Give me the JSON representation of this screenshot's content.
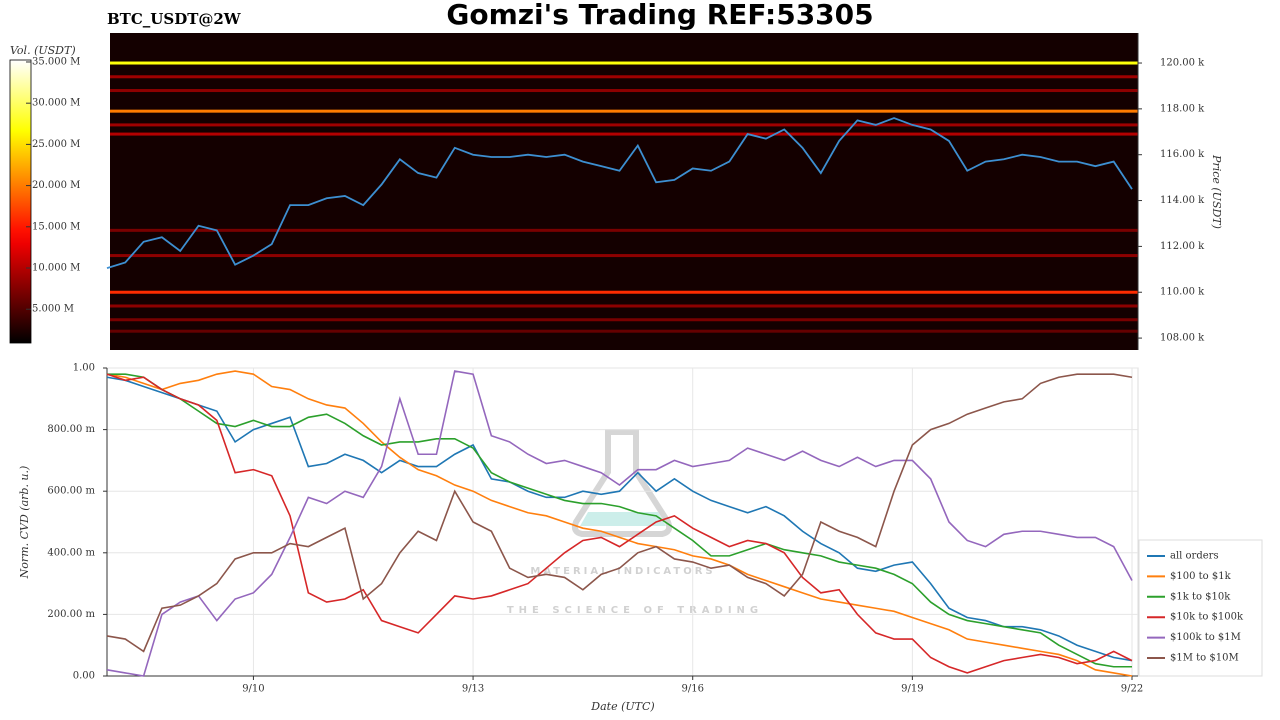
{
  "chart_data": [
    {
      "type": "heatmap",
      "title": "Gomzi's Trading REF:53305",
      "subtitle": "BTC_USDT@2W",
      "ylabel": "Price (USDT)",
      "ylim": [
        107480,
        121310
      ],
      "yticks": [
        {
          "value": 108000,
          "label": "108.00 k"
        },
        {
          "value": 110000,
          "label": "110.00 k"
        },
        {
          "value": 112000,
          "label": "112.00 k"
        },
        {
          "value": 114000,
          "label": "114.00 k"
        },
        {
          "value": 116000,
          "label": "116.00 k"
        },
        {
          "value": 118000,
          "label": "118.00 k"
        },
        {
          "value": 120000,
          "label": "120.00 k"
        }
      ],
      "colorbar": {
        "label": "Vol. (USDT)",
        "colormap": "hot",
        "lim": [
          900000,
          35240000
        ],
        "ticks": [
          {
            "value": 5000000,
            "label": "5.000 M"
          },
          {
            "value": 10000000,
            "label": "10.000 M"
          },
          {
            "value": 15000000,
            "label": "15.000 M"
          },
          {
            "value": 20000000,
            "label": "20.000 M"
          },
          {
            "value": 25000000,
            "label": "25.000 M"
          },
          {
            "value": 30000000,
            "label": "30.000 M"
          },
          {
            "value": 35000000,
            "label": "35.000 M"
          }
        ]
      },
      "levels": [
        {
          "price": 120000,
          "volume": 27000000
        },
        {
          "price": 119400,
          "volume": 9000000
        },
        {
          "price": 118800,
          "volume": 8000000
        },
        {
          "price": 117900,
          "volume": 20000000
        },
        {
          "price": 117300,
          "volume": 9000000
        },
        {
          "price": 116900,
          "volume": 10000000
        },
        {
          "price": 112700,
          "volume": 7000000
        },
        {
          "price": 111600,
          "volume": 8000000
        },
        {
          "price": 110000,
          "volume": 16000000
        },
        {
          "price": 109400,
          "volume": 8000000
        },
        {
          "price": 108800,
          "volume": 7000000
        },
        {
          "price": 108300,
          "volume": 6000000
        }
      ],
      "price": {
        "color": "#3d8fd1",
        "values": [
          111050,
          111300,
          112200,
          112400,
          111800,
          112900,
          112700,
          111200,
          111600,
          112100,
          113800,
          113800,
          114100,
          114200,
          113800,
          114700,
          115800,
          115200,
          115000,
          116300,
          116000,
          115900,
          115900,
          116000,
          115900,
          116000,
          115700,
          115500,
          115300,
          116400,
          114800,
          114900,
          115400,
          115300,
          115700,
          116900,
          116700,
          117100,
          116300,
          115200,
          116600,
          117500,
          117300,
          117600,
          117300,
          117100,
          116600,
          115300,
          115700,
          115800,
          116000,
          115900,
          115700,
          115700,
          115500,
          115700,
          114500
        ]
      }
    },
    {
      "type": "line",
      "xlabel": "Date (UTC)",
      "ylabel": "Norm. CVD (arb. u.)",
      "grid": true,
      "legend": "right",
      "watermark": [
        "MATERIAL INDICATORS",
        "THE SCIENCE OF TRADING"
      ],
      "categories": [
        null,
        null,
        null,
        null,
        null,
        null,
        null,
        null,
        "9/10",
        null,
        null,
        null,
        null,
        null,
        null,
        null,
        null,
        null,
        null,
        null,
        "9/13",
        null,
        null,
        null,
        null,
        null,
        null,
        null,
        null,
        null,
        null,
        null,
        "9/16",
        null,
        null,
        null,
        null,
        null,
        null,
        null,
        null,
        null,
        null,
        null,
        "9/19",
        null,
        null,
        null,
        null,
        null,
        null,
        null,
        null,
        null,
        null,
        null,
        "9/22"
      ],
      "ylim": [
        0,
        1
      ],
      "yticks": [
        {
          "value": 0,
          "label": "0.00"
        },
        {
          "value": 0.2,
          "label": "200.00 m"
        },
        {
          "value": 0.4,
          "label": "400.00 m"
        },
        {
          "value": 0.6,
          "label": "600.00 m"
        },
        {
          "value": 0.8,
          "label": "800.00 m"
        },
        {
          "value": 1,
          "label": "1.00"
        }
      ],
      "series": [
        {
          "name": "all orders",
          "color": "#1f77b4",
          "values": [
            0.97,
            0.96,
            0.94,
            0.92,
            0.9,
            0.88,
            0.86,
            0.76,
            0.8,
            0.82,
            0.84,
            0.68,
            0.69,
            0.72,
            0.7,
            0.66,
            0.7,
            0.68,
            0.68,
            0.72,
            0.75,
            0.64,
            0.63,
            0.6,
            0.58,
            0.58,
            0.6,
            0.59,
            0.6,
            0.66,
            0.6,
            0.64,
            0.6,
            0.57,
            0.55,
            0.53,
            0.55,
            0.52,
            0.47,
            0.43,
            0.4,
            0.35,
            0.34,
            0.36,
            0.37,
            0.3,
            0.22,
            0.19,
            0.18,
            0.16,
            0.16,
            0.15,
            0.13,
            0.1,
            0.08,
            0.06,
            0.05
          ]
        },
        {
          "name": "$100 to $1k",
          "color": "#ff7f0e",
          "values": [
            0.98,
            0.97,
            0.95,
            0.93,
            0.95,
            0.96,
            0.98,
            0.99,
            0.98,
            0.94,
            0.93,
            0.9,
            0.88,
            0.87,
            0.82,
            0.76,
            0.71,
            0.67,
            0.65,
            0.62,
            0.6,
            0.57,
            0.55,
            0.53,
            0.52,
            0.5,
            0.48,
            0.47,
            0.45,
            0.43,
            0.42,
            0.41,
            0.39,
            0.38,
            0.36,
            0.33,
            0.31,
            0.29,
            0.27,
            0.25,
            0.24,
            0.23,
            0.22,
            0.21,
            0.19,
            0.17,
            0.15,
            0.12,
            0.11,
            0.1,
            0.09,
            0.08,
            0.07,
            0.05,
            0.02,
            0.01,
            0
          ]
        },
        {
          "name": "$1k to $10k",
          "color": "#2ca02c",
          "values": [
            0.98,
            0.98,
            0.97,
            0.93,
            0.9,
            0.86,
            0.82,
            0.81,
            0.83,
            0.81,
            0.81,
            0.84,
            0.85,
            0.82,
            0.78,
            0.75,
            0.76,
            0.76,
            0.77,
            0.77,
            0.74,
            0.66,
            0.63,
            0.61,
            0.59,
            0.57,
            0.56,
            0.56,
            0.55,
            0.53,
            0.52,
            0.48,
            0.44,
            0.39,
            0.39,
            0.41,
            0.43,
            0.41,
            0.4,
            0.39,
            0.37,
            0.36,
            0.35,
            0.33,
            0.3,
            0.24,
            0.2,
            0.18,
            0.17,
            0.16,
            0.15,
            0.14,
            0.1,
            0.07,
            0.04,
            0.03,
            0.03
          ]
        },
        {
          "name": "$10k to $100k",
          "color": "#d62728",
          "values": [
            0.98,
            0.96,
            0.97,
            0.93,
            0.9,
            0.88,
            0.83,
            0.66,
            0.67,
            0.65,
            0.52,
            0.27,
            0.24,
            0.25,
            0.28,
            0.18,
            0.16,
            0.14,
            0.2,
            0.26,
            0.25,
            0.26,
            0.28,
            0.3,
            0.35,
            0.4,
            0.44,
            0.45,
            0.42,
            0.46,
            0.5,
            0.52,
            0.48,
            0.45,
            0.42,
            0.44,
            0.43,
            0.4,
            0.32,
            0.27,
            0.28,
            0.2,
            0.14,
            0.12,
            0.12,
            0.06,
            0.03,
            0.01,
            0.03,
            0.05,
            0.06,
            0.07,
            0.06,
            0.04,
            0.05,
            0.08,
            0.05
          ]
        },
        {
          "name": "$100k to $1M",
          "color": "#9467bd",
          "values": [
            0.02,
            0.01,
            0,
            0.2,
            0.24,
            0.26,
            0.18,
            0.25,
            0.27,
            0.33,
            0.45,
            0.58,
            0.56,
            0.6,
            0.58,
            0.68,
            0.9,
            0.72,
            0.72,
            0.99,
            0.98,
            0.78,
            0.76,
            0.72,
            0.69,
            0.7,
            0.68,
            0.66,
            0.62,
            0.67,
            0.67,
            0.7,
            0.68,
            0.69,
            0.7,
            0.74,
            0.72,
            0.7,
            0.73,
            0.7,
            0.68,
            0.71,
            0.68,
            0.7,
            0.7,
            0.64,
            0.5,
            0.44,
            0.42,
            0.46,
            0.47,
            0.47,
            0.46,
            0.45,
            0.45,
            0.42,
            0.31
          ]
        },
        {
          "name": "$1M to $10M",
          "color": "#8c564b",
          "values": [
            0.13,
            0.12,
            0.08,
            0.22,
            0.23,
            0.26,
            0.3,
            0.38,
            0.4,
            0.4,
            0.43,
            0.42,
            0.45,
            0.48,
            0.25,
            0.3,
            0.4,
            0.47,
            0.44,
            0.6,
            0.5,
            0.47,
            0.35,
            0.32,
            0.33,
            0.32,
            0.28,
            0.33,
            0.35,
            0.4,
            0.42,
            0.38,
            0.37,
            0.35,
            0.36,
            0.32,
            0.3,
            0.26,
            0.33,
            0.5,
            0.47,
            0.45,
            0.42,
            0.6,
            0.75,
            0.8,
            0.82,
            0.85,
            0.87,
            0.89,
            0.9,
            0.95,
            0.97,
            0.98,
            0.98,
            0.98,
            0.97
          ]
        }
      ]
    }
  ]
}
